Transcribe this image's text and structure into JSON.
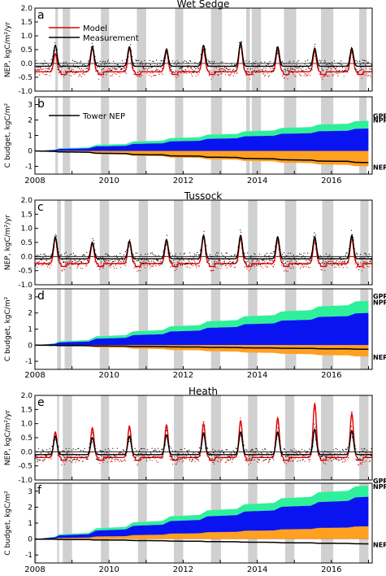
{
  "x_ticks": [
    "2008",
    "2010",
    "2012",
    "2014",
    "2016"
  ],
  "chart_data": [
    {
      "panel": "a",
      "type": "line",
      "title": "Wet Sedge",
      "ylabel": "NEP, kgC/m²/yr",
      "xlim": [
        2008.0,
        2017.1
      ],
      "ylim": [
        -1.0,
        2.0
      ],
      "yticks": [
        "2.0",
        "1.5",
        "1.0",
        "0.5",
        "0.0",
        "-0.5",
        "-1.0"
      ],
      "legend": "top-left",
      "series": [
        {
          "name": "Model",
          "color": "#e00000",
          "peaks": [
            0.35,
            0.55,
            0.55,
            0.45,
            0.5,
            0.7,
            0.5,
            0.45,
            0.45
          ],
          "winter": -0.3
        },
        {
          "name": "Measurement",
          "color": "#000000",
          "peaks": [
            0.65,
            0.6,
            0.6,
            0.5,
            0.65,
            0.75,
            0.6,
            0.55,
            0.55
          ],
          "winter": -0.1
        }
      ],
      "gray_bands": [
        [
          2008.55,
          2008.62
        ],
        [
          2008.75,
          2008.95
        ],
        [
          2009.78,
          2010.0
        ],
        [
          2010.75,
          2011.0
        ],
        [
          2011.78,
          2012.0
        ],
        [
          2012.75,
          2013.05
        ],
        [
          2013.7,
          2013.8
        ],
        [
          2013.85,
          2014.1
        ],
        [
          2014.72,
          2015.05
        ],
        [
          2015.72,
          2016.05
        ],
        [
          2016.75,
          2016.95
        ]
      ]
    },
    {
      "panel": "b",
      "type": "area",
      "ylabel": "C budget, kgC/m²",
      "xlim": [
        2008.0,
        2017.1
      ],
      "ylim": [
        -1.5,
        3.5
      ],
      "yticks": [
        "3",
        "2",
        "1",
        "0",
        "-1"
      ],
      "legend": "top-left",
      "series": [
        {
          "name": "GPP",
          "color": "#2ff09a",
          "end": 1.95
        },
        {
          "name": "NPP",
          "color": "#0a14f0",
          "end": 1.45
        },
        {
          "name": "NEP",
          "color": "#ffa020",
          "end": -1.0
        },
        {
          "name": "Tower NEP",
          "color": "#000000",
          "end": -0.75
        }
      ],
      "gray_bands": [
        [
          2008.55,
          2008.62
        ],
        [
          2008.75,
          2008.95
        ],
        [
          2009.78,
          2010.0
        ],
        [
          2010.75,
          2011.0
        ],
        [
          2011.78,
          2012.0
        ],
        [
          2012.75,
          2013.05
        ],
        [
          2013.7,
          2013.8
        ],
        [
          2013.85,
          2014.1
        ],
        [
          2014.72,
          2015.05
        ],
        [
          2015.72,
          2016.05
        ],
        [
          2016.75,
          2016.95
        ]
      ]
    },
    {
      "panel": "c",
      "type": "line",
      "title": "Tussock",
      "ylabel": "NEP, kgC/m²/yr",
      "xlim": [
        2008.0,
        2017.1
      ],
      "ylim": [
        -1.0,
        2.0
      ],
      "yticks": [
        "2.0",
        "1.5",
        "1.0",
        "0.5",
        "0.0",
        "-0.5",
        "-1.0"
      ],
      "series": [
        {
          "name": "Model",
          "color": "#e00000",
          "peaks": [
            0.65,
            0.45,
            0.55,
            0.55,
            0.7,
            0.65,
            0.6,
            0.6,
            0.65
          ],
          "winter": -0.25
        },
        {
          "name": "Measurement",
          "color": "#000000",
          "peaks": [
            0.7,
            0.5,
            0.55,
            0.6,
            0.75,
            0.75,
            0.7,
            0.7,
            0.75
          ],
          "winter": -0.08
        }
      ],
      "gray_bands": [
        [
          2008.6,
          2008.7
        ],
        [
          2008.8,
          2009.0
        ],
        [
          2009.75,
          2010.0
        ],
        [
          2010.8,
          2011.05
        ],
        [
          2011.75,
          2012.0
        ],
        [
          2012.75,
          2013.0
        ],
        [
          2013.75,
          2014.0
        ],
        [
          2014.75,
          2015.05
        ],
        [
          2015.75,
          2016.05
        ],
        [
          2016.78,
          2017.0
        ]
      ]
    },
    {
      "panel": "d",
      "type": "area",
      "ylabel": "C budget, kgC/m²",
      "xlim": [
        2008.0,
        2017.1
      ],
      "ylim": [
        -1.5,
        3.5
      ],
      "yticks": [
        "3",
        "2",
        "1",
        "0",
        "-1"
      ],
      "series": [
        {
          "name": "GPP",
          "color": "#2ff09a",
          "end": 2.75
        },
        {
          "name": "NPP",
          "color": "#0a14f0",
          "end": 2.0
        },
        {
          "name": "NEP",
          "color": "#ffa020",
          "end": -0.7
        },
        {
          "name": "Tower NEP",
          "color": "#000000",
          "end": -0.25
        }
      ],
      "gray_bands": [
        [
          2008.6,
          2008.7
        ],
        [
          2008.8,
          2009.0
        ],
        [
          2009.75,
          2010.0
        ],
        [
          2010.8,
          2011.05
        ],
        [
          2011.75,
          2012.0
        ],
        [
          2012.75,
          2013.0
        ],
        [
          2013.75,
          2014.0
        ],
        [
          2014.75,
          2015.05
        ],
        [
          2015.75,
          2016.05
        ],
        [
          2016.78,
          2017.0
        ]
      ]
    },
    {
      "panel": "e",
      "type": "line",
      "title": "Heath",
      "ylabel": "NEP, kgC/m²/yr",
      "xlim": [
        2008.0,
        2017.1
      ],
      "ylim": [
        -1.0,
        2.0
      ],
      "yticks": [
        "2.0",
        "1.5",
        "1.0",
        "0.5",
        "0.0",
        "-0.5",
        "-1.0"
      ],
      "series": [
        {
          "name": "Model",
          "color": "#e00000",
          "peaks": [
            0.7,
            0.85,
            0.9,
            0.95,
            1.0,
            1.1,
            1.2,
            1.7,
            1.35
          ],
          "winter": -0.2
        },
        {
          "name": "Measurement",
          "color": "#000000",
          "peaks": [
            0.55,
            0.5,
            0.55,
            0.6,
            0.65,
            0.7,
            0.7,
            0.8,
            0.75
          ],
          "winter": -0.1
        }
      ],
      "gray_bands": [
        [
          2008.6,
          2008.65
        ],
        [
          2008.75,
          2009.0
        ],
        [
          2009.78,
          2010.0
        ],
        [
          2010.78,
          2011.02
        ],
        [
          2011.75,
          2012.0
        ],
        [
          2012.75,
          2013.02
        ],
        [
          2013.75,
          2014.0
        ],
        [
          2014.75,
          2015.0
        ],
        [
          2015.72,
          2016.05
        ],
        [
          2016.75,
          2017.0
        ]
      ]
    },
    {
      "panel": "f",
      "type": "area",
      "ylabel": "C budget, kgC/m²",
      "xlim": [
        2008.0,
        2017.1
      ],
      "ylim": [
        -1.5,
        3.5
      ],
      "yticks": [
        "3",
        "2",
        "1",
        "0",
        "-1"
      ],
      "series": [
        {
          "name": "GPP",
          "color": "#2ff09a",
          "end": 3.35
        },
        {
          "name": "NPP",
          "color": "#0a14f0",
          "end": 2.65
        },
        {
          "name": "NEP",
          "color": "#ffa020",
          "end": 0.8
        },
        {
          "name": "Tower NEP",
          "color": "#000000",
          "end": -0.3
        }
      ],
      "gray_bands": [
        [
          2008.0,
          2008.05
        ],
        [
          2008.6,
          2008.65
        ],
        [
          2008.75,
          2009.0
        ],
        [
          2009.78,
          2010.0
        ],
        [
          2010.78,
          2011.02
        ],
        [
          2011.75,
          2012.0
        ],
        [
          2012.75,
          2013.02
        ],
        [
          2013.75,
          2014.0
        ],
        [
          2014.75,
          2015.0
        ],
        [
          2015.72,
          2016.05
        ],
        [
          2016.75,
          2017.0
        ]
      ]
    }
  ]
}
